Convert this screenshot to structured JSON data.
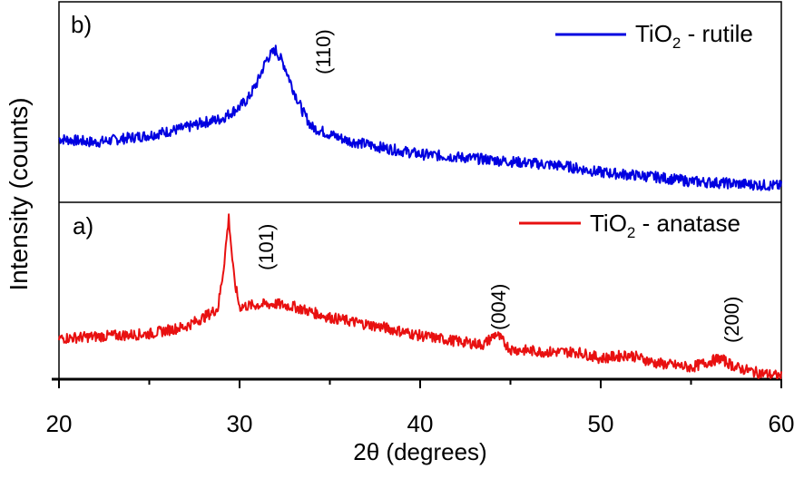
{
  "chart_data": [
    {
      "type": "line",
      "panel_label": "b)",
      "legend": {
        "label_main": "TiO",
        "label_sub": "2",
        "label_rest": " - rutile",
        "placement": "top-right"
      },
      "color": "#0000e0",
      "annotations": [
        {
          "text": "(110)",
          "x": 34.3
        }
      ],
      "series": [
        {
          "name": "TiO2 - rutile",
          "x": [
            20,
            22,
            25,
            27,
            28,
            29,
            30,
            30.5,
            31,
            31.5,
            32,
            32.5,
            33,
            33.5,
            34,
            35,
            36,
            38,
            40,
            42,
            45,
            48,
            50,
            53,
            55,
            58,
            60
          ],
          "y": [
            70,
            66,
            74,
            82,
            88,
            92,
            105,
            115,
            133,
            158,
            168,
            150,
            123,
            100,
            83,
            75,
            68,
            60,
            53,
            50,
            45,
            40,
            33,
            28,
            23,
            20,
            18
          ]
        }
      ]
    },
    {
      "type": "line",
      "panel_label": "a)",
      "legend": {
        "label_main": "TiO",
        "label_sub": "2",
        "label_rest": " - anatase",
        "placement": "top-right"
      },
      "color": "#e81010",
      "annotations": [
        {
          "text": "(101)",
          "x": 31.2
        },
        {
          "text": "(004)",
          "x": 44.3
        },
        {
          "text": "(200)",
          "x": 56.8
        }
      ],
      "series": [
        {
          "name": "TiO2 - anatase",
          "x": [
            20,
            22,
            25,
            27,
            28,
            28.8,
            29.1,
            29.4,
            29.7,
            30,
            31,
            32,
            33,
            35,
            38,
            40,
            42,
            43.5,
            44.2,
            45,
            47,
            48.7,
            50,
            51.6,
            53,
            55,
            56.6,
            57.5,
            58.5,
            60
          ],
          "y": [
            45,
            47,
            50,
            58,
            68,
            78,
            120,
            178,
            110,
            80,
            82,
            83,
            80,
            68,
            57,
            48,
            42,
            38,
            50,
            33,
            30,
            30,
            23,
            27,
            18,
            13,
            23,
            13,
            8,
            3
          ]
        }
      ]
    }
  ],
  "axes": {
    "xlabel": "2θ (degrees)",
    "ylabel": "Intensity (counts)",
    "xlim": [
      20,
      60
    ],
    "xticks": [
      "20",
      "30",
      "40",
      "50",
      "60"
    ],
    "grid": false
  }
}
